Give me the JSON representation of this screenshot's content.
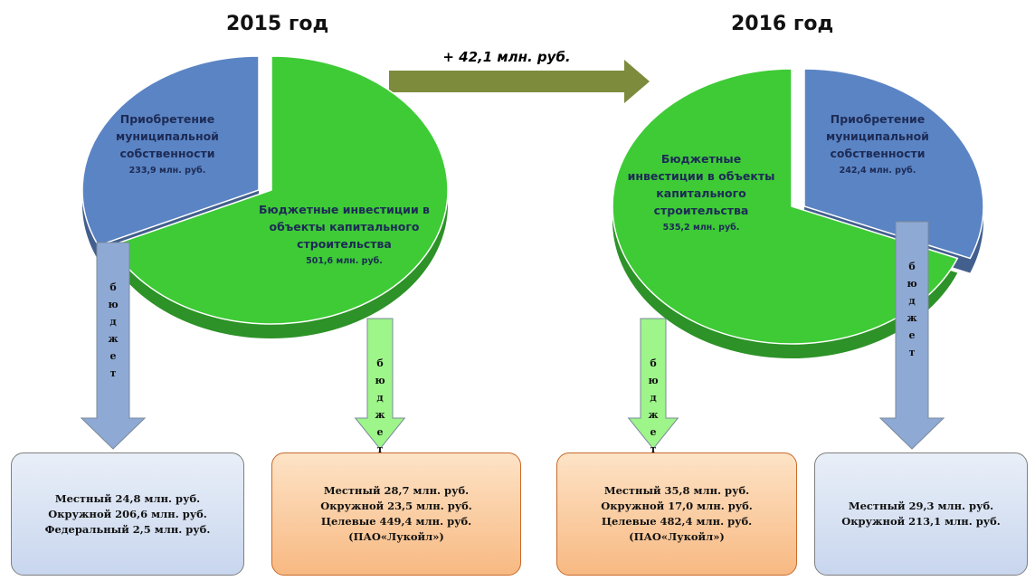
{
  "chart_data": [
    {
      "type": "pie",
      "title": "2015 год",
      "categories": [
        "Приобретение муниципальной собственности",
        "Бюджетные инвестиции в объекты капитального строительства"
      ],
      "values": [
        233.9,
        501.6
      ],
      "value_labels": [
        "233,9 млн. руб.",
        "501,6 млн. руб."
      ],
      "colors": [
        "#5b84c4",
        "#3ecb36"
      ]
    },
    {
      "type": "pie",
      "title": "2016 год",
      "categories": [
        "Приобретение муниципальной собственности",
        "Бюджетные инвестиции в объекты капитального строительства"
      ],
      "values": [
        242.4,
        535.2
      ],
      "value_labels": [
        "242,4 млн. руб.",
        "535,2 млн. руб."
      ],
      "colors": [
        "#5b84c4",
        "#3ecb36"
      ]
    }
  ],
  "change": "+ 42,1 млн. руб.",
  "flows": [
    {
      "label": "бюджет",
      "lines": [
        "Местный 24,8  млн. руб.",
        "Окружной 206,6  млн. руб.",
        "Федеральный 2,5 млн. руб."
      ]
    },
    {
      "label": "бюджет",
      "lines": [
        "Местный 28,7 млн. руб.",
        "Окружной 23,5 млн. руб.",
        "Целевые 449,4 млн. руб.",
        "(ПАО«Лукойл»)"
      ]
    },
    {
      "label": "бюджет",
      "lines": [
        "Местный 35,8  млн. руб.",
        "Окружной 17,0  млн. руб.",
        "Целевые 482,4 млн. руб.",
        "(ПАО«Лукойл»)"
      ]
    },
    {
      "label": "бюджет",
      "lines": [
        "Местный 29,3 млн. руб.",
        "Окружной 213,1 млн. руб."
      ]
    }
  ]
}
